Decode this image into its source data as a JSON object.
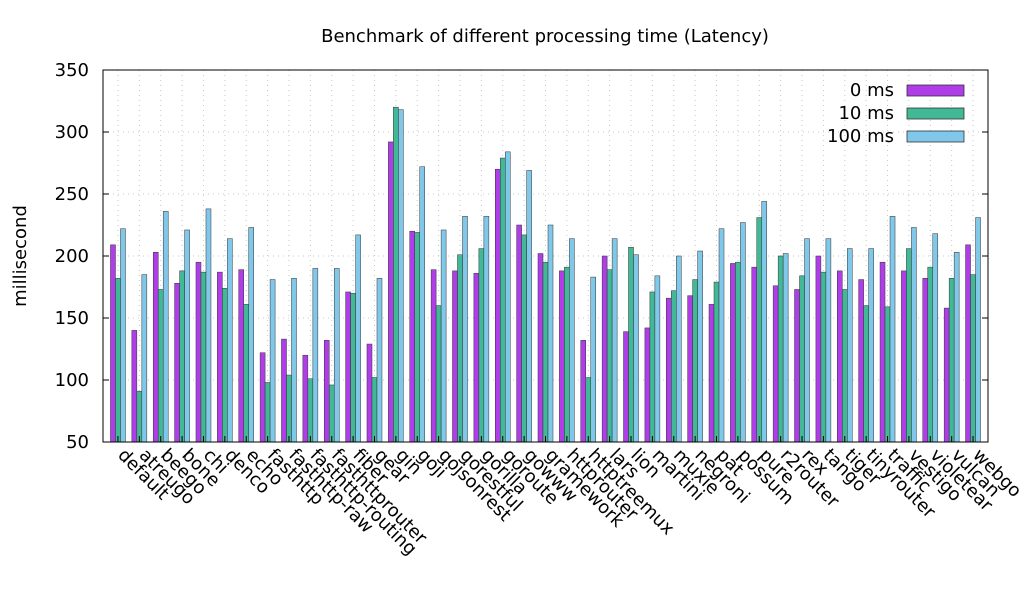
{
  "chart_data": {
    "type": "bar",
    "title": "Benchmark of different processing time (Latency)",
    "xlabel": "",
    "ylabel": "millisecond",
    "ylim": [
      50,
      350
    ],
    "yticks": [
      50,
      100,
      150,
      200,
      250,
      300,
      350
    ],
    "grid": true,
    "legend_position": "top-right",
    "categories": [
      "default",
      "atreugo",
      "beego",
      "bone",
      "chi",
      "denco",
      "echo",
      "fasthttp",
      "fasthttp-raw",
      "fasthttp-routing",
      "fasthttprouter",
      "fiber",
      "gear",
      "gin",
      "goji",
      "gojsonrest",
      "gorestful",
      "gorilla",
      "goroute",
      "gowww",
      "gramework",
      "httprouter",
      "httptreemux",
      "lars",
      "lion",
      "martini",
      "muxie",
      "negroni",
      "pat",
      "possum",
      "pure",
      "r2router",
      "rex",
      "tango",
      "tiger",
      "tinyrouter",
      "traffic",
      "vestigo",
      "violetear",
      "vulcan",
      "webgo"
    ],
    "series": [
      {
        "name": "0 ms",
        "color": "#b03ee8",
        "values": [
          209,
          140,
          203,
          178,
          195,
          187,
          189,
          122,
          133,
          120,
          132,
          171,
          129,
          292,
          220,
          189,
          188,
          186,
          270,
          225,
          202,
          188,
          132,
          200,
          139,
          142,
          166,
          168,
          161,
          194,
          191,
          176,
          173,
          200,
          188,
          181,
          195,
          188,
          182,
          158,
          209
        ]
      },
      {
        "name": "10 ms",
        "color": "#42b996",
        "values": [
          182,
          91,
          173,
          188,
          187,
          174,
          161,
          98,
          104,
          101,
          96,
          170,
          102,
          320,
          219,
          160,
          201,
          206,
          279,
          217,
          195,
          191,
          102,
          189,
          207,
          171,
          172,
          181,
          179,
          195,
          231,
          200,
          184,
          187,
          173,
          160,
          159,
          206,
          191,
          182,
          185
        ]
      },
      {
        "name": "100 ms",
        "color": "#80c8ea",
        "values": [
          222,
          185,
          236,
          221,
          238,
          214,
          223,
          181,
          182,
          190,
          190,
          217,
          182,
          318,
          272,
          221,
          232,
          232,
          284,
          269,
          225,
          214,
          183,
          214,
          201,
          184,
          200,
          204,
          222,
          227,
          244,
          202,
          214,
          214,
          206,
          206,
          232,
          223,
          218,
          203,
          231
        ]
      }
    ]
  }
}
